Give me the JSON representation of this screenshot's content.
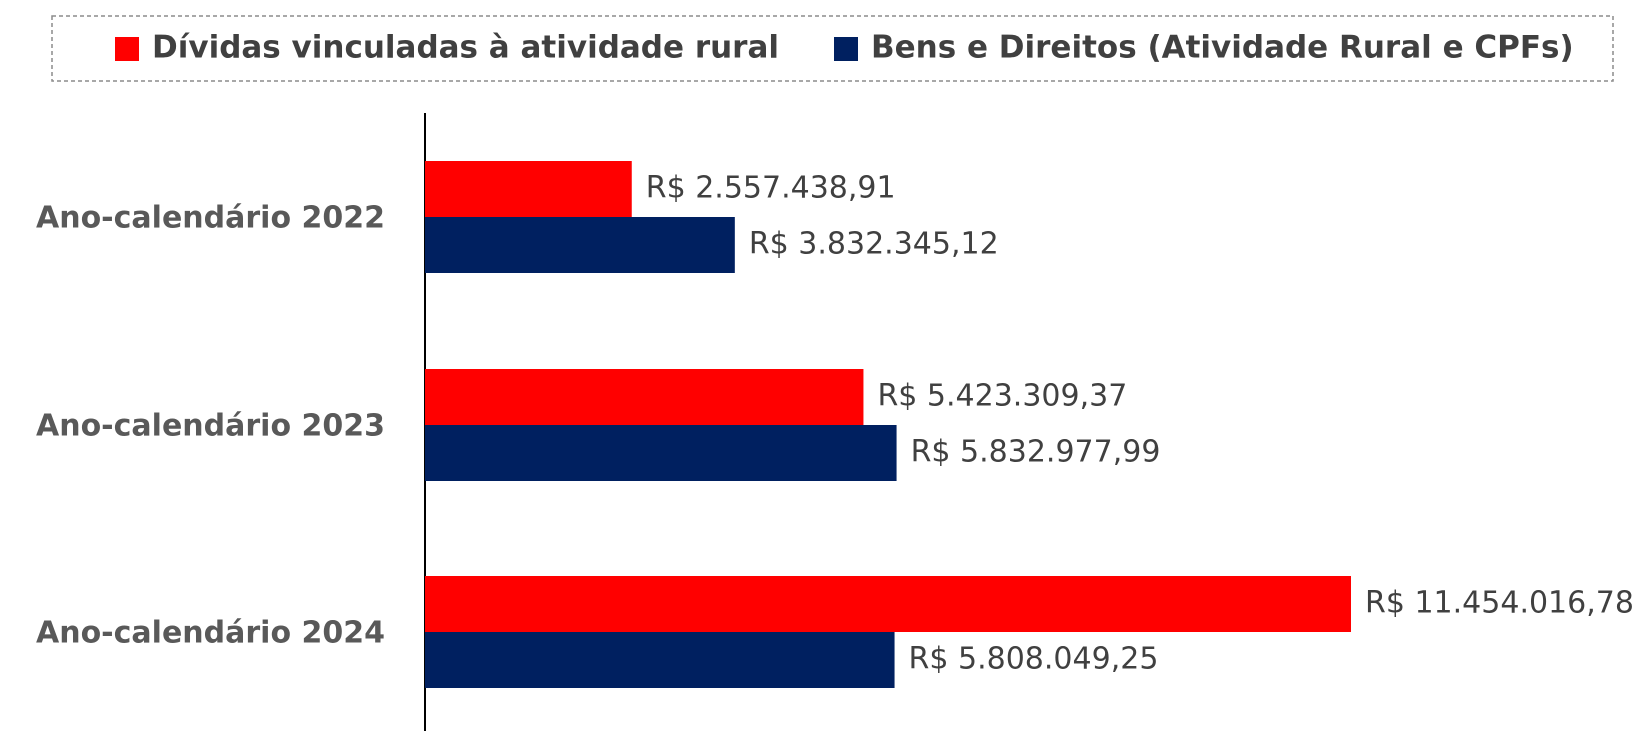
{
  "chart_data": {
    "type": "bar",
    "orientation": "horizontal",
    "categories": [
      "Ano-calendário 2022",
      "Ano-calendário 2023",
      "Ano-calendário 2024"
    ],
    "series": [
      {
        "name": "Dívidas vinculadas à atividade rural",
        "color": "#ff0000",
        "values": [
          2557438.91,
          5423309.37,
          11454016.78
        ],
        "value_labels": [
          "R$ 2.557.438,91",
          "R$ 5.423.309,37",
          "R$ 11.454.016,78"
        ]
      },
      {
        "name": "Bens e Direitos (Atividade Rural e CPFs)",
        "color": "#002060",
        "values": [
          3832345.12,
          5832977.99,
          5808049.25
        ],
        "value_labels": [
          "R$ 3.832.345,12",
          "R$ 5.832.977,99",
          "R$ 5.808.049,25"
        ]
      }
    ],
    "legend": "top"
  }
}
